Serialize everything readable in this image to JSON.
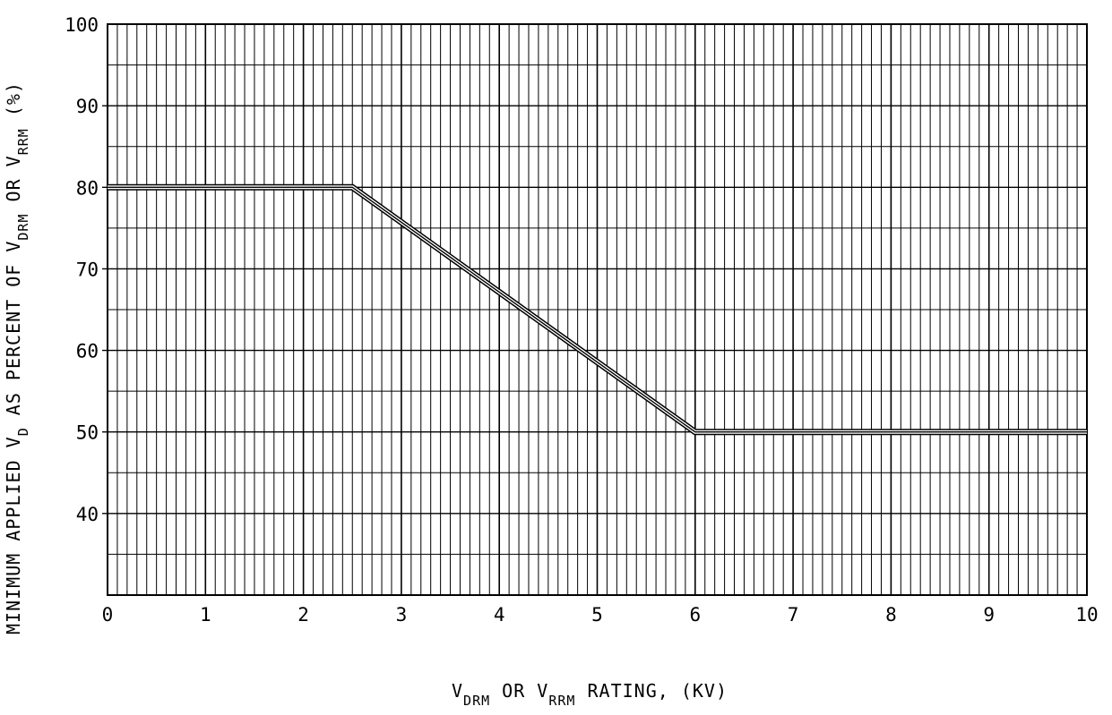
{
  "chart_data": {
    "type": "line",
    "title": "",
    "xlabel": {
      "parts": [
        {
          "text": "V",
          "sub": false
        },
        {
          "text": "DRM",
          "sub": true
        },
        {
          "text": " OR V",
          "sub": false
        },
        {
          "text": "RRM",
          "sub": true
        },
        {
          "text": " RATING, (KV)",
          "sub": false
        }
      ]
    },
    "ylabel": {
      "parts": [
        {
          "text": "MINIMUM APPLIED V",
          "sub": false
        },
        {
          "text": "D",
          "sub": true
        },
        {
          "text": " AS PERCENT OF V",
          "sub": false
        },
        {
          "text": "DRM",
          "sub": true
        },
        {
          "text": " OR V",
          "sub": false
        },
        {
          "text": "RRM",
          "sub": true
        },
        {
          "text": " (%)",
          "sub": false
        }
      ]
    },
    "xlim": [
      0,
      10
    ],
    "ylim": [
      30,
      100
    ],
    "xticks": [
      0,
      1,
      2,
      3,
      4,
      5,
      6,
      7,
      8,
      9,
      10
    ],
    "yticks": [
      40,
      50,
      60,
      70,
      80,
      90,
      100
    ],
    "x_minor_step": 0.1,
    "y_minor_step": 5,
    "grid": true,
    "line_style": "triple-line",
    "series": [
      {
        "x": [
          0,
          2.5,
          6,
          10
        ],
        "y": [
          80,
          80,
          50,
          50
        ]
      }
    ]
  }
}
